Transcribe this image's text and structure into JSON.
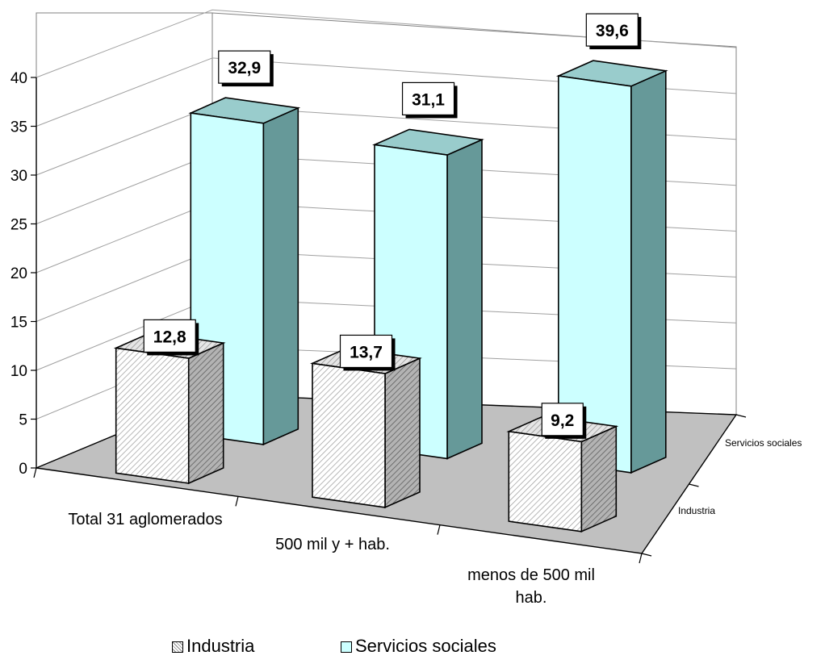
{
  "chart_data": {
    "type": "bar",
    "subtype": "3d-clustered-column",
    "categories": [
      "Total 31 aglomerados",
      "500 mil y + hab.",
      "menos de 500 mil hab."
    ],
    "series": [
      {
        "name": "Industria",
        "values": [
          12.8,
          13.7,
          9.2
        ],
        "value_labels": [
          "12,8",
          "13,7",
          "9,2"
        ],
        "pattern": "diagonal-hatch",
        "color": "#ffffff"
      },
      {
        "name": "Servicios sociales",
        "values": [
          32.9,
          31.1,
          39.6
        ],
        "value_labels": [
          "32,9",
          "31,1",
          "39,6"
        ],
        "pattern": "solid",
        "color": "#ccffff"
      }
    ],
    "y_ticks": [
      "0",
      "5",
      "10",
      "15",
      "20",
      "25",
      "30",
      "35",
      "40"
    ],
    "ylim": [
      0,
      40
    ],
    "depth_labels": [
      "Industria",
      "Servicios sociales"
    ],
    "legend_position": "bottom",
    "grid": true,
    "colors": {
      "floor": "#c0c0c0",
      "walls": "#ffffff",
      "cyan_front": "#ccffff",
      "cyan_top": "#99cccc",
      "cyan_side": "#669999",
      "hatch_side": "#808080"
    }
  }
}
